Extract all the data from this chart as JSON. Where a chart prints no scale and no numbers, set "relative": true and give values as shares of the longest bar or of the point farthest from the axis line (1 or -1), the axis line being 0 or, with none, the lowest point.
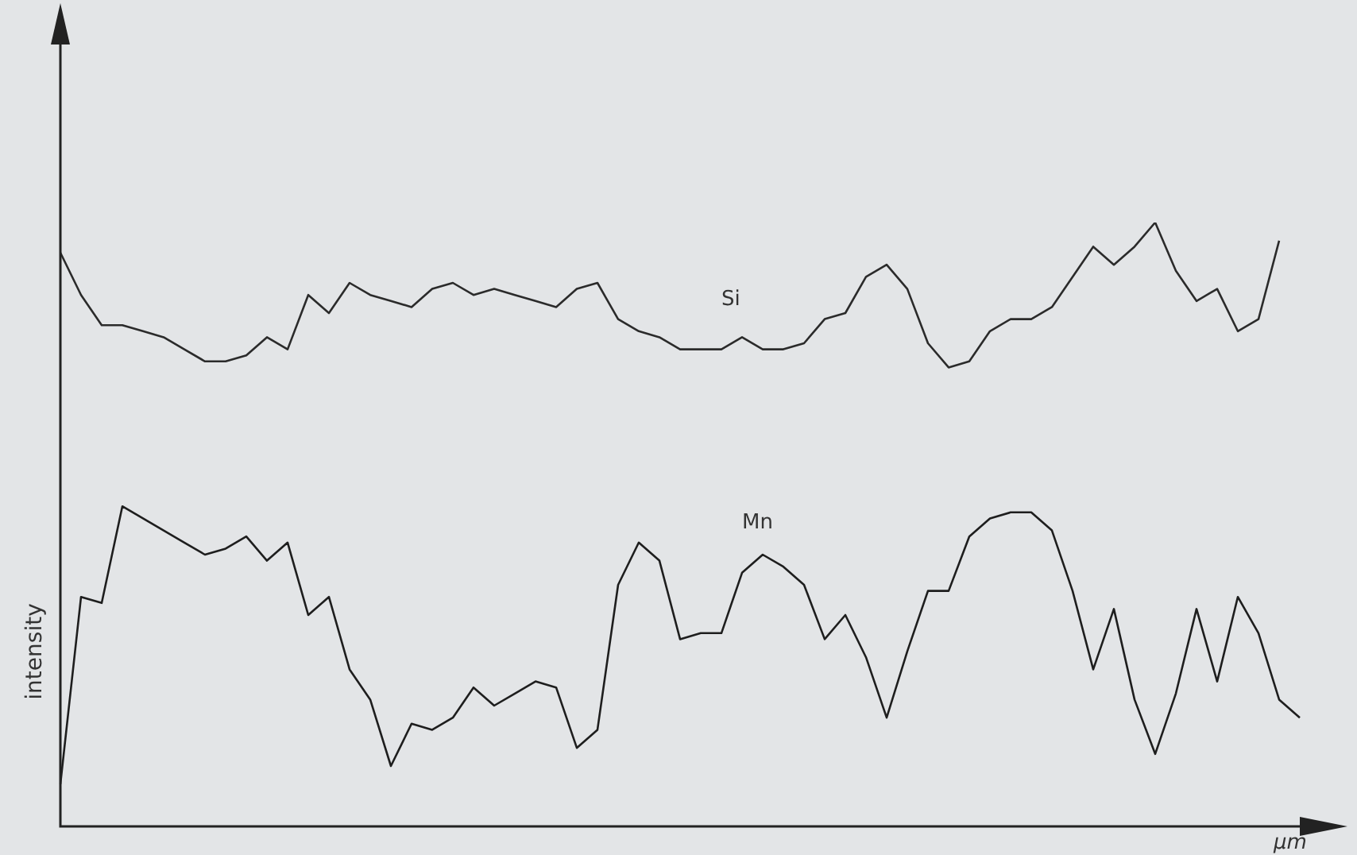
{
  "chart_data": {
    "type": "line",
    "relative": true,
    "xlabel": "µm",
    "ylabel": "intensity",
    "marker": "none",
    "categories": [
      null,
      null,
      null,
      null,
      null,
      null,
      null,
      null,
      null,
      null,
      null,
      null,
      null,
      null,
      null,
      null,
      null,
      null,
      null,
      null,
      null,
      null,
      null,
      null,
      null,
      null,
      null,
      null,
      null,
      null,
      null,
      null,
      null,
      null,
      null,
      null,
      null,
      null,
      null,
      null,
      null,
      null,
      null,
      null,
      null,
      null,
      null,
      null,
      null,
      null,
      null,
      null,
      null,
      null,
      null,
      null,
      null,
      null,
      null,
      null,
      null
    ],
    "series": [
      {
        "name": "Si",
        "color": "#2b2b2b",
        "values": [
          0.95,
          0.88,
          0.83,
          0.83,
          0.82,
          0.81,
          0.79,
          0.77,
          0.77,
          0.78,
          0.81,
          0.79,
          0.88,
          0.85,
          0.9,
          0.88,
          0.87,
          0.86,
          0.89,
          0.9,
          0.88,
          0.89,
          0.88,
          0.87,
          0.86,
          0.89,
          0.9,
          0.84,
          0.82,
          0.81,
          0.79,
          0.79,
          0.79,
          0.81,
          0.79,
          0.79,
          0.8,
          0.84,
          0.85,
          0.91,
          0.93,
          0.89,
          0.8,
          0.76,
          0.77,
          0.82,
          0.84,
          0.84,
          0.86,
          0.91,
          0.96,
          0.93,
          0.96,
          1,
          0.92,
          0.87,
          0.89,
          0.82,
          0.84,
          0.97,
          null
        ]
      },
      {
        "name": "Mn",
        "color": "#1e1e1e",
        "values": [
          0.07,
          0.38,
          0.37,
          0.53,
          0.51,
          0.49,
          0.47,
          0.45,
          0.46,
          0.48,
          0.44,
          0.47,
          0.35,
          0.38,
          0.26,
          0.21,
          0.1,
          0.17,
          0.16,
          0.18,
          0.23,
          0.2,
          0.22,
          0.24,
          0.23,
          0.13,
          0.16,
          0.4,
          0.47,
          0.44,
          0.31,
          0.32,
          0.32,
          0.42,
          0.45,
          0.43,
          0.4,
          0.31,
          0.35,
          0.28,
          0.18,
          0.29,
          0.39,
          0.39,
          0.48,
          0.51,
          0.52,
          0.52,
          0.49,
          0.39,
          0.26,
          0.36,
          0.21,
          0.12,
          0.22,
          0.36,
          0.24,
          0.38,
          0.32,
          0.21,
          0.18
        ]
      }
    ]
  }
}
